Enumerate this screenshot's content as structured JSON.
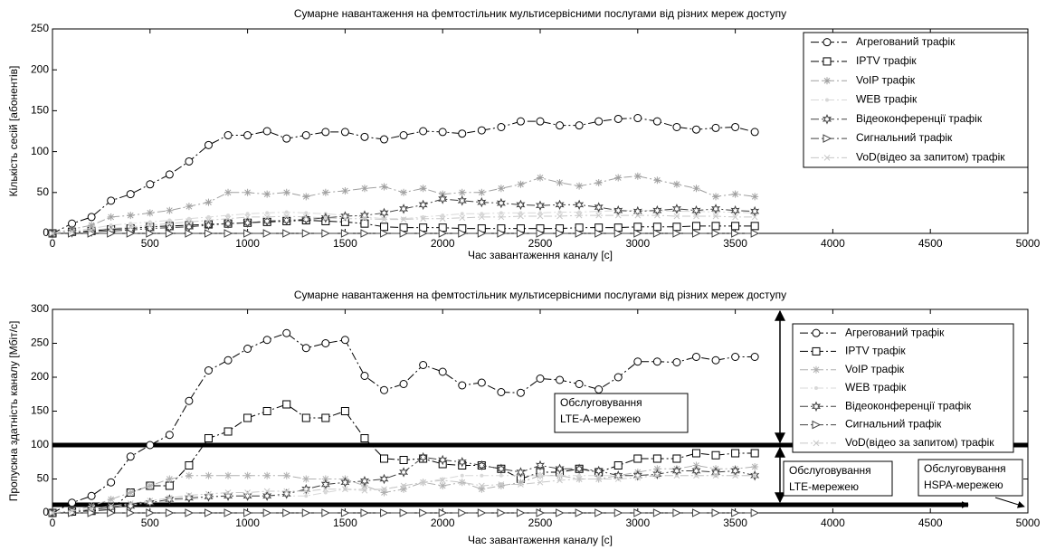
{
  "chart_data": [
    {
      "type": "line",
      "title": "Сумарне навантаження на фемтостільник  мультисервісними послугами від різних мереж доступу",
      "x_label": "Час завантаження  каналу [с]",
      "y_label": "Кількість сесій [абонентів]",
      "xlim": [
        0,
        5000
      ],
      "xticks": [
        0,
        500,
        1000,
        1500,
        2000,
        2500,
        3000,
        3500,
        4000,
        4500,
        5000
      ],
      "ylim": [
        0,
        250
      ],
      "yticks": [
        0,
        50,
        100,
        150,
        200,
        250
      ],
      "grid": false,
      "legend": "upper right",
      "x": [
        0,
        100,
        200,
        300,
        400,
        500,
        600,
        700,
        800,
        900,
        1000,
        1100,
        1200,
        1300,
        1400,
        1500,
        1600,
        1700,
        1800,
        1900,
        2000,
        2100,
        2200,
        2300,
        2400,
        2500,
        2600,
        2700,
        2800,
        2900,
        3000,
        3100,
        3200,
        3300,
        3400,
        3500,
        3600
      ],
      "series": [
        {
          "name": "Агрегований трафік",
          "color": "#000000",
          "marker": "o",
          "values": [
            0,
            12,
            20,
            40,
            48,
            60,
            72,
            88,
            108,
            120,
            120,
            125,
            116,
            120,
            124,
            124,
            118,
            115,
            120,
            125,
            124,
            122,
            126,
            130,
            137,
            137,
            132,
            132,
            137,
            140,
            141,
            137,
            130,
            127,
            129,
            130,
            124
          ]
        },
        {
          "name": "IPTV трафік",
          "color": "#000000",
          "marker": "s",
          "values": [
            0,
            2,
            3,
            5,
            6,
            8,
            9,
            10,
            11,
            12,
            13,
            14,
            15,
            16,
            15,
            14,
            12,
            8,
            7,
            7,
            7,
            6,
            6,
            6,
            6,
            6,
            6,
            7,
            7,
            7,
            8,
            8,
            8,
            9,
            9,
            9,
            9
          ]
        },
        {
          "name": "VoIP  трафік",
          "color": "#a0a0a0",
          "marker": "*",
          "values": [
            0,
            5,
            10,
            20,
            22,
            25,
            28,
            33,
            38,
            50,
            50,
            48,
            50,
            45,
            50,
            52,
            55,
            57,
            50,
            55,
            48,
            50,
            50,
            55,
            60,
            68,
            62,
            58,
            62,
            68,
            70,
            65,
            60,
            55,
            45,
            48,
            45
          ]
        },
        {
          "name": "WEB трафік",
          "color": "#d8d8d8",
          "marker": ".",
          "values": [
            0,
            3,
            6,
            10,
            12,
            14,
            16,
            18,
            20,
            22,
            24,
            25,
            26,
            25,
            24,
            22,
            20,
            18,
            18,
            20,
            22,
            24,
            24,
            25,
            25,
            25,
            26,
            26,
            27,
            28,
            28,
            28,
            27,
            27,
            26,
            26,
            25
          ]
        },
        {
          "name": "Відеоконференції трафік",
          "color": "#404040",
          "marker": "h",
          "values": [
            0,
            1,
            2,
            3,
            4,
            6,
            7,
            8,
            10,
            12,
            13,
            15,
            16,
            17,
            19,
            21,
            22,
            25,
            30,
            35,
            42,
            40,
            38,
            37,
            35,
            34,
            35,
            35,
            32,
            28,
            27,
            28,
            30,
            28,
            30,
            28,
            27
          ]
        },
        {
          "name": "Сигнальний трафік",
          "color": "#404040",
          "marker": ">",
          "values": [
            0,
            0,
            0,
            0,
            0,
            0,
            0,
            0,
            0,
            0,
            0,
            0,
            0,
            0,
            0,
            0,
            0,
            0,
            0,
            0,
            0,
            0,
            0,
            0,
            0,
            0,
            0,
            0,
            0,
            0,
            0,
            0,
            0,
            0,
            0,
            0,
            0
          ]
        },
        {
          "name": "VoD(відео за запитом) трафік",
          "color": "#c8c8c8",
          "marker": "x",
          "values": [
            0,
            2,
            4,
            6,
            8,
            10,
            12,
            14,
            16,
            18,
            20,
            20,
            21,
            20,
            19,
            18,
            18,
            17,
            17,
            18,
            18,
            19,
            20,
            20,
            21,
            21,
            21,
            22,
            22,
            22,
            22,
            22,
            21,
            21,
            21,
            20,
            20
          ]
        }
      ]
    },
    {
      "type": "line",
      "title": "Сумарне навантаження на фемтостільник  мультисервісними послугами від різних мереж доступу",
      "x_label": "Час завантаження  каналу [с]",
      "y_label": "Пропускна здатність  каналу [Мбіт/с]",
      "xlim": [
        0,
        5000
      ],
      "xticks": [
        0,
        500,
        1000,
        1500,
        2000,
        2500,
        3000,
        3500,
        4000,
        4500,
        5000
      ],
      "ylim": [
        0,
        300
      ],
      "yticks": [
        0,
        50,
        100,
        150,
        200,
        250,
        300
      ],
      "grid": false,
      "legend": "upper right",
      "thresholds": [
        100,
        12
      ],
      "annotations": [
        [
          "Обслуговування",
          "LTE-А-мережею"
        ],
        [
          "Обслуговування",
          "LTE-мережею"
        ],
        [
          "Обслуговування",
          "HSPA-мережею"
        ]
      ],
      "x": [
        0,
        100,
        200,
        300,
        400,
        500,
        600,
        700,
        800,
        900,
        1000,
        1100,
        1200,
        1300,
        1400,
        1500,
        1600,
        1700,
        1800,
        1900,
        2000,
        2100,
        2200,
        2300,
        2400,
        2500,
        2600,
        2700,
        2800,
        2900,
        3000,
        3100,
        3200,
        3300,
        3400,
        3500,
        3600
      ],
      "series": [
        {
          "name": "Агрегований трафік",
          "color": "#000000",
          "marker": "o",
          "values": [
            0,
            15,
            25,
            45,
            83,
            100,
            115,
            165,
            210,
            225,
            242,
            255,
            265,
            243,
            250,
            255,
            202,
            181,
            190,
            218,
            208,
            188,
            192,
            178,
            177,
            198,
            196,
            190,
            182,
            200,
            223,
            223,
            222,
            230,
            225,
            230,
            230
          ]
        },
        {
          "name": "IPTV трафік",
          "color": "#000000",
          "marker": "s",
          "values": [
            0,
            2,
            3,
            5,
            30,
            40,
            40,
            70,
            110,
            120,
            140,
            150,
            160,
            140,
            140,
            150,
            110,
            80,
            78,
            80,
            72,
            70,
            70,
            65,
            50,
            60,
            60,
            65,
            60,
            70,
            80,
            80,
            80,
            88,
            85,
            88,
            88
          ]
        },
        {
          "name": "VoIP  трафік",
          "color": "#b0b0b0",
          "marker": "*",
          "values": [
            0,
            3,
            10,
            20,
            30,
            40,
            50,
            55,
            55,
            55,
            55,
            55,
            55,
            50,
            50,
            50,
            40,
            30,
            35,
            45,
            40,
            45,
            35,
            40,
            45,
            55,
            55,
            50,
            50,
            55,
            60,
            65,
            65,
            70,
            65,
            65,
            68
          ]
        },
        {
          "name": "WEB трафік",
          "color": "#d8d8d8",
          "marker": ".",
          "values": [
            0,
            2,
            5,
            8,
            12,
            15,
            18,
            20,
            22,
            25,
            25,
            25,
            25,
            25,
            30,
            35,
            35,
            35,
            40,
            45,
            50,
            55,
            55,
            55,
            55,
            55,
            55,
            55,
            55,
            55,
            55,
            55,
            55,
            55,
            55,
            55,
            55
          ]
        },
        {
          "name": "Відеоконференції трафік",
          "color": "#404040",
          "marker": "h",
          "values": [
            0,
            2,
            5,
            8,
            10,
            15,
            20,
            22,
            24,
            25,
            25,
            25,
            28,
            35,
            42,
            45,
            47,
            50,
            60,
            82,
            78,
            75,
            70,
            65,
            60,
            70,
            65,
            65,
            62,
            55,
            55,
            57,
            62,
            62,
            60,
            62,
            55
          ]
        },
        {
          "name": "Сигнальний трафік",
          "color": "#404040",
          "marker": ">",
          "values": [
            0,
            0,
            0,
            0,
            0,
            0,
            0,
            0,
            0,
            0,
            0,
            0,
            0,
            0,
            0,
            0,
            0,
            0,
            0,
            0,
            0,
            0,
            0,
            0,
            0,
            0,
            0,
            0,
            0,
            0,
            0,
            0,
            0,
            0,
            0,
            0,
            0
          ]
        },
        {
          "name": "VoD(відео за запитом) трафік",
          "color": "#c8c8c8",
          "marker": "x",
          "values": [
            0,
            3,
            6,
            10,
            14,
            18,
            22,
            26,
            28,
            30,
            30,
            32,
            32,
            32,
            35,
            35,
            33,
            35,
            40,
            45,
            48,
            45,
            40,
            42,
            42,
            45,
            48,
            50,
            50,
            50,
            52,
            55,
            55,
            55,
            55,
            55,
            55
          ]
        }
      ]
    }
  ]
}
